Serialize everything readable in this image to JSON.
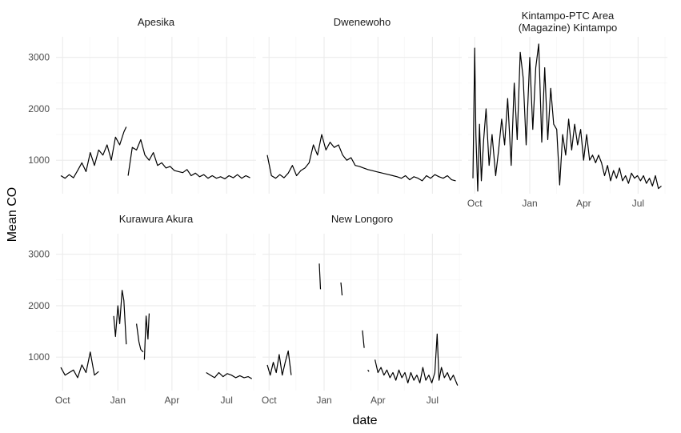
{
  "chart_data": {
    "type": "line",
    "title": "",
    "xlabel": "date",
    "ylabel": "Mean CO",
    "x_ticks": [
      "Oct",
      "Jan",
      "Apr",
      "Jul"
    ],
    "y_ticks": [
      1000,
      2000,
      3000
    ],
    "ylim": [
      350,
      3400
    ],
    "grid": true,
    "facets": [
      {
        "name": "Apesika",
        "segments": [
          {
            "x": [
              "2018-09-28",
              "2018-10-05",
              "2018-10-12",
              "2018-10-19",
              "2018-10-26",
              "2018-11-02",
              "2018-11-09",
              "2018-11-16",
              "2018-11-23",
              "2018-11-30",
              "2018-12-07",
              "2018-12-14",
              "2018-12-21",
              "2018-12-28",
              "2019-01-04",
              "2019-01-11",
              "2019-01-15"
            ],
            "y": [
              700,
              650,
              720,
              660,
              800,
              950,
              780,
              1150,
              900,
              1200,
              1100,
              1300,
              1000,
              1450,
              1300,
              1550,
              1650
            ]
          },
          {
            "x": [
              "2019-01-18",
              "2019-01-25",
              "2019-02-01",
              "2019-02-08",
              "2019-02-15",
              "2019-02-22",
              "2019-03-01",
              "2019-03-08",
              "2019-03-15",
              "2019-03-22",
              "2019-03-29",
              "2019-04-05",
              "2019-04-12",
              "2019-04-19",
              "2019-04-26",
              "2019-05-03",
              "2019-05-10",
              "2019-05-17",
              "2019-05-24",
              "2019-05-31",
              "2019-06-07",
              "2019-06-14",
              "2019-06-21",
              "2019-06-28",
              "2019-07-05",
              "2019-07-12",
              "2019-07-19",
              "2019-07-26",
              "2019-08-02",
              "2019-08-09"
            ],
            "y": [
              700,
              1250,
              1200,
              1400,
              1100,
              1000,
              1150,
              900,
              950,
              850,
              880,
              800,
              780,
              760,
              820,
              700,
              750,
              680,
              720,
              650,
              700,
              650,
              680,
              640,
              700,
              660,
              720,
              650,
              700,
              660
            ]
          }
        ]
      },
      {
        "name": "Dwenewoho",
        "segments": [
          {
            "x": [
              "2018-09-28",
              "2018-10-05",
              "2018-10-12",
              "2018-10-19",
              "2018-10-26",
              "2018-11-02",
              "2018-11-09",
              "2018-11-16",
              "2018-11-23",
              "2018-11-30",
              "2018-12-07",
              "2018-12-14",
              "2018-12-21",
              "2018-12-28",
              "2019-01-04",
              "2019-01-11",
              "2019-01-18",
              "2019-01-25",
              "2019-02-01",
              "2019-02-08",
              "2019-02-15",
              "2019-02-22",
              "2019-03-01",
              "2019-03-08",
              "2019-03-15",
              "2019-03-22",
              "2019-03-29",
              "2019-04-05",
              "2019-04-12",
              "2019-04-19",
              "2019-04-26",
              "2019-05-03",
              "2019-05-10",
              "2019-05-17",
              "2019-05-24",
              "2019-05-31",
              "2019-06-07",
              "2019-06-14",
              "2019-06-21",
              "2019-06-28",
              "2019-07-05",
              "2019-07-12",
              "2019-07-19",
              "2019-07-26",
              "2019-08-02",
              "2019-08-09"
            ],
            "y": [
              1100,
              700,
              650,
              720,
              660,
              750,
              900,
              700,
              800,
              850,
              950,
              1300,
              1100,
              1500,
              1200,
              1350,
              1250,
              1300,
              1100,
              1000,
              1050,
              900,
              880,
              850,
              820,
              800,
              780,
              760,
              740,
              720,
              700,
              680,
              650,
              700,
              620,
              680,
              650,
              600,
              700,
              650,
              720,
              680,
              650,
              700,
              620,
              600
            ]
          }
        ]
      },
      {
        "name": "Kintampo-PTC Area\n(Magazine) Kintampo",
        "segments": [
          {
            "x": [
              "2018-09-28",
              "2018-10-01",
              "2018-10-03",
              "2018-10-06",
              "2018-10-09",
              "2018-10-12",
              "2018-10-16",
              "2018-10-20",
              "2018-10-25",
              "2018-10-30",
              "2018-11-05",
              "2018-11-10",
              "2018-11-15",
              "2018-11-20",
              "2018-11-25",
              "2018-12-01",
              "2018-12-06",
              "2018-12-11",
              "2018-12-16",
              "2018-12-21",
              "2018-12-26",
              "2019-01-01",
              "2019-01-06",
              "2019-01-11",
              "2019-01-16",
              "2019-01-21",
              "2019-01-26",
              "2019-01-31",
              "2019-02-05",
              "2019-02-10",
              "2019-02-15",
              "2019-02-20",
              "2019-02-25",
              "2019-03-02",
              "2019-03-07",
              "2019-03-12",
              "2019-03-17",
              "2019-03-22",
              "2019-03-27",
              "2019-04-01",
              "2019-04-06",
              "2019-04-11",
              "2019-04-16",
              "2019-04-21",
              "2019-04-26",
              "2019-05-01",
              "2019-05-06",
              "2019-05-11",
              "2019-05-16",
              "2019-05-21",
              "2019-05-26",
              "2019-05-31",
              "2019-06-05",
              "2019-06-10",
              "2019-06-15",
              "2019-06-20",
              "2019-06-25",
              "2019-06-30",
              "2019-07-05",
              "2019-07-10",
              "2019-07-15",
              "2019-07-20",
              "2019-07-25",
              "2019-07-30",
              "2019-08-04",
              "2019-08-09"
            ],
            "y": [
              650,
              3180,
              1500,
              400,
              1700,
              600,
              1400,
              2000,
              900,
              1500,
              700,
              1200,
              1800,
              1300,
              2200,
              900,
              2500,
              1400,
              3100,
              2600,
              1300,
              3000,
              1600,
              2800,
              3260,
              1350,
              2800,
              1400,
              2400,
              1700,
              1600,
              520,
              1500,
              1100,
              1800,
              1200,
              1700,
              1300,
              1600,
              1000,
              1500,
              1000,
              1100,
              950,
              1100,
              950,
              700,
              900,
              600,
              800,
              650,
              850,
              600,
              700,
              550,
              750,
              650,
              700,
              600,
              700,
              550,
              650,
              500,
              700,
              450,
              500
            ]
          }
        ]
      },
      {
        "name": "Kurawura Akura",
        "segments": [
          {
            "x": [
              "2018-09-28",
              "2018-10-05",
              "2018-10-12",
              "2018-10-19",
              "2018-10-26",
              "2018-11-02",
              "2018-11-09",
              "2018-11-16",
              "2018-11-23",
              "2018-11-30"
            ],
            "y": [
              800,
              650,
              700,
              750,
              600,
              850,
              700,
              1100,
              650,
              720
            ]
          },
          {
            "x": [
              "2018-12-25",
              "2018-12-28",
              "2019-01-01",
              "2019-01-04",
              "2019-01-08",
              "2019-01-11",
              "2019-01-15"
            ],
            "y": [
              1800,
              1400,
              2000,
              1650,
              2300,
              2100,
              1250
            ]
          },
          {
            "x": [
              "2019-02-01",
              "2019-02-05",
              "2019-02-08",
              "2019-02-12"
            ],
            "y": [
              1650,
              1300,
              1150,
              1100
            ]
          },
          {
            "x": [
              "2019-02-14",
              "2019-02-17",
              "2019-02-20",
              "2019-02-22"
            ],
            "y": [
              950,
              1800,
              1350,
              1850
            ]
          },
          {
            "x": [
              "2019-05-28",
              "2019-06-04",
              "2019-06-11",
              "2019-06-18",
              "2019-06-25",
              "2019-07-02",
              "2019-07-09",
              "2019-07-16",
              "2019-07-23",
              "2019-07-30",
              "2019-08-06",
              "2019-08-12"
            ],
            "y": [
              700,
              650,
              600,
              700,
              620,
              680,
              650,
              600,
              640,
              600,
              620,
              580
            ]
          }
        ]
      },
      {
        "name": "New Longoro",
        "segments": [
          {
            "x": [
              "2018-09-28",
              "2018-10-03",
              "2018-10-08",
              "2018-10-13",
              "2018-10-18",
              "2018-10-23",
              "2018-10-28",
              "2018-11-02",
              "2018-11-07"
            ],
            "y": [
              850,
              650,
              900,
              700,
              1050,
              650,
              900,
              1120,
              650
            ]
          },
          {
            "x": [
              "2018-12-24",
              "2018-12-26"
            ],
            "y": [
              2820,
              2320
            ]
          },
          {
            "x": [
              "2019-01-29",
              "2019-01-31"
            ],
            "y": [
              2450,
              2200
            ]
          },
          {
            "x": [
              "2019-03-06",
              "2019-03-09"
            ],
            "y": [
              1520,
              1180
            ]
          },
          {
            "x": [
              "2019-03-15",
              "2019-03-17"
            ],
            "y": [
              750,
              720
            ]
          },
          {
            "x": [
              "2019-03-27",
              "2019-04-01",
              "2019-04-06",
              "2019-04-11",
              "2019-04-16",
              "2019-04-21",
              "2019-04-26",
              "2019-05-01",
              "2019-05-06",
              "2019-05-11",
              "2019-05-16",
              "2019-05-21",
              "2019-05-26",
              "2019-05-31",
              "2019-06-05",
              "2019-06-10",
              "2019-06-15",
              "2019-06-20",
              "2019-06-25",
              "2019-06-30",
              "2019-07-05",
              "2019-07-09",
              "2019-07-12",
              "2019-07-16",
              "2019-07-21",
              "2019-07-26",
              "2019-07-31",
              "2019-08-05",
              "2019-08-12"
            ],
            "y": [
              950,
              700,
              800,
              650,
              750,
              600,
              700,
              550,
              750,
              600,
              700,
              500,
              700,
              550,
              650,
              500,
              800,
              550,
              650,
              500,
              700,
              1450,
              550,
              800,
              600,
              700,
              550,
              650,
              450
            ]
          }
        ]
      }
    ]
  }
}
